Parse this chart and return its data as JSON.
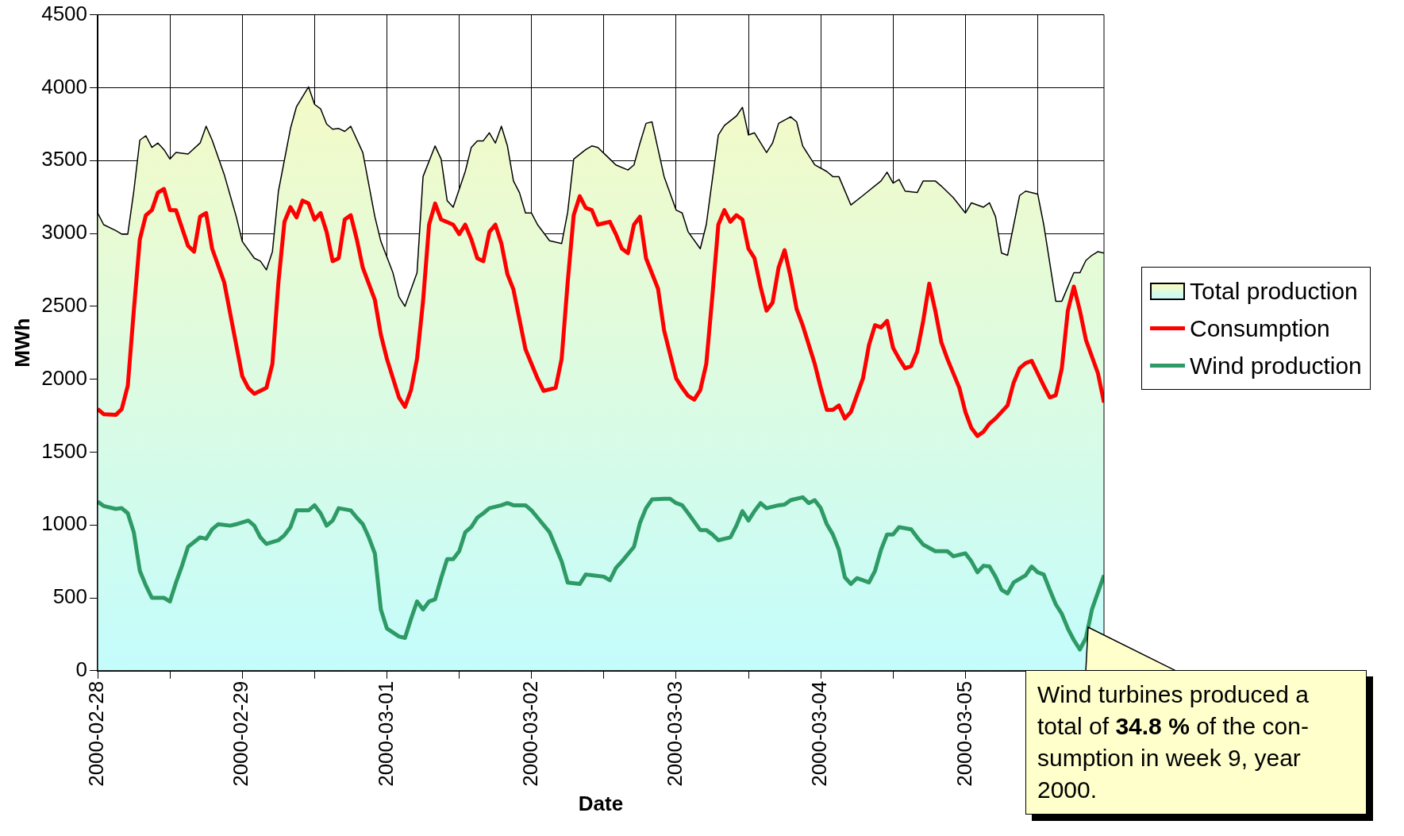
{
  "chart_data": {
    "type": "line",
    "xlabel": "Date",
    "ylabel": "MWh",
    "xlim": [
      "2000-02-28T00:00",
      "2000-03-05T23:00"
    ],
    "ylim": [
      0,
      4500
    ],
    "yticks": [
      0,
      500,
      1000,
      1500,
      2000,
      2500,
      3000,
      3500,
      4000,
      4500
    ],
    "xticks": [
      "2000-02-28",
      {
        "value": "2000-02-28T12:00",
        "label": null
      },
      "2000-02-29",
      {
        "value": "2000-02-29T12:00",
        "label": null
      },
      "2000-03-01",
      {
        "value": "2000-03-01T12:00",
        "label": null
      },
      "2000-03-02",
      {
        "value": "2000-03-02T12:00",
        "label": null
      },
      "2000-03-03",
      {
        "value": "2000-03-03T12:00",
        "label": null
      },
      "2000-03-04",
      {
        "value": "2000-03-04T12:00",
        "label": null
      },
      "2000-03-05",
      {
        "value": "2000-03-05T12:00",
        "label": null
      }
    ],
    "grid": true,
    "legend": "right",
    "marker": "none",
    "line_style": "solid",
    "series": [
      {
        "name": "Total production",
        "type": "area",
        "color": "#000000",
        "x": [
          "2000-02-28T00:00",
          "2000-02-28T01:00",
          "2000-02-28T03:00",
          "2000-02-28T04:00",
          "2000-02-28T05:00",
          "2000-02-28T06:00",
          "2000-02-28T07:00",
          "2000-02-28T08:00",
          "2000-02-28T09:00",
          "2000-02-28T10:00",
          "2000-02-28T11:00",
          "2000-02-28T12:00",
          "2000-02-28T13:00",
          "2000-02-28T15:00",
          "2000-02-28T17:00",
          "2000-02-28T18:00",
          "2000-02-28T19:00",
          "2000-02-28T21:00",
          "2000-02-28T23:00",
          "2000-02-29T00:00",
          "2000-02-29T02:00",
          "2000-02-29T03:00",
          "2000-02-29T04:00",
          "2000-02-29T05:00",
          "2000-02-29T06:00",
          "2000-02-29T08:00",
          "2000-02-29T09:00",
          "2000-02-29T11:00",
          "2000-02-29T12:00",
          "2000-02-29T13:00",
          "2000-02-29T14:00",
          "2000-02-29T15:00",
          "2000-02-29T16:00",
          "2000-02-29T17:00",
          "2000-02-29T18:00",
          "2000-02-29T20:00",
          "2000-02-29T22:00",
          "2000-02-29T23:00",
          "2000-03-01T01:00",
          "2000-03-01T02:00",
          "2000-03-01T03:00",
          "2000-03-01T05:00",
          "2000-03-01T06:00",
          "2000-03-01T08:00",
          "2000-03-01T09:00",
          "2000-03-01T10:00",
          "2000-03-01T11:00",
          "2000-03-01T13:00",
          "2000-03-01T14:00",
          "2000-03-01T15:00",
          "2000-03-01T16:00",
          "2000-03-01T17:00",
          "2000-03-01T18:00",
          "2000-03-01T19:00",
          "2000-03-01T20:00",
          "2000-03-01T21:00",
          "2000-03-01T22:00",
          "2000-03-01T23:00",
          "2000-03-02T00:00",
          "2000-03-02T01:00",
          "2000-03-02T03:00",
          "2000-03-02T05:00",
          "2000-03-02T06:00",
          "2000-03-02T07:00",
          "2000-03-02T09:00",
          "2000-03-02T10:00",
          "2000-03-02T11:00",
          "2000-03-02T13:00",
          "2000-03-02T14:00",
          "2000-03-02T16:00",
          "2000-03-02T17:00",
          "2000-03-02T18:00",
          "2000-03-02T19:00",
          "2000-03-02T20:00",
          "2000-03-02T22:00",
          "2000-03-03T00:00",
          "2000-03-03T01:00",
          "2000-03-03T02:00",
          "2000-03-03T04:00",
          "2000-03-03T05:00",
          "2000-03-03T07:00",
          "2000-03-03T08:00",
          "2000-03-03T10:00",
          "2000-03-03T11:00",
          "2000-03-03T12:00",
          "2000-03-03T13:00",
          "2000-03-03T15:00",
          "2000-03-03T16:00",
          "2000-03-03T17:00",
          "2000-03-03T19:00",
          "2000-03-03T20:00",
          "2000-03-03T21:00",
          "2000-03-03T23:00",
          "2000-03-04T01:00",
          "2000-03-04T02:00",
          "2000-03-04T03:00",
          "2000-03-04T05:00",
          "2000-03-04T07:00",
          "2000-03-04T10:00",
          "2000-03-04T11:00",
          "2000-03-04T12:00",
          "2000-03-04T13:00",
          "2000-03-04T14:00",
          "2000-03-04T16:00",
          "2000-03-04T17:00",
          "2000-03-04T19:00",
          "2000-03-04T20:00",
          "2000-03-04T22:00",
          "2000-03-05T00:00",
          "2000-03-05T01:00",
          "2000-03-05T03:00",
          "2000-03-05T04:00",
          "2000-03-05T05:00",
          "2000-03-05T06:00",
          "2000-03-05T07:00",
          "2000-03-05T09:00",
          "2000-03-05T10:00",
          "2000-03-05T12:00",
          "2000-03-05T13:00",
          "2000-03-05T15:00",
          "2000-03-05T16:00",
          "2000-03-05T18:00",
          "2000-03-05T19:00",
          "2000-03-05T20:00",
          "2000-03-05T21:00",
          "2000-03-05T22:00",
          "2000-03-05T23:00"
        ],
        "values": [
          3140,
          3060,
          3020,
          2995,
          2995,
          3290,
          3640,
          3670,
          3590,
          3620,
          3575,
          3510,
          3555,
          3545,
          3620,
          3735,
          3640,
          3405,
          3115,
          2945,
          2830,
          2810,
          2750,
          2875,
          3290,
          3720,
          3870,
          4005,
          3885,
          3855,
          3750,
          3715,
          3720,
          3700,
          3735,
          3555,
          3115,
          2945,
          2730,
          2565,
          2500,
          2730,
          3390,
          3600,
          3510,
          3225,
          3180,
          3425,
          3590,
          3635,
          3635,
          3690,
          3620,
          3735,
          3600,
          3360,
          3280,
          3140,
          3140,
          3060,
          2950,
          2930,
          3145,
          3510,
          3575,
          3600,
          3590,
          3510,
          3470,
          3435,
          3470,
          3620,
          3755,
          3765,
          3390,
          3160,
          3140,
          3010,
          2895,
          3060,
          3675,
          3740,
          3805,
          3865,
          3675,
          3690,
          3555,
          3620,
          3755,
          3800,
          3765,
          3600,
          3470,
          3425,
          3390,
          3390,
          3195,
          3260,
          3360,
          3420,
          3345,
          3370,
          3290,
          3280,
          3360,
          3360,
          3325,
          3245,
          3140,
          3210,
          3180,
          3210,
          3115,
          2865,
          2850,
          3260,
          3290,
          3270,
          3060,
          2535,
          2535,
          2730,
          2730,
          2815,
          2850,
          2875,
          2865
        ]
      },
      {
        "name": "Consumption",
        "type": "line",
        "color": "#ff0000",
        "x": [
          "2000-02-28T00:00",
          "2000-02-28T01:00",
          "2000-02-28T03:00",
          "2000-02-28T04:00",
          "2000-02-28T05:00",
          "2000-02-28T06:00",
          "2000-02-28T07:00",
          "2000-02-28T08:00",
          "2000-02-28T09:00",
          "2000-02-28T10:00",
          "2000-02-28T11:00",
          "2000-02-28T12:00",
          "2000-02-28T13:00",
          "2000-02-28T15:00",
          "2000-02-28T16:00",
          "2000-02-28T17:00",
          "2000-02-28T18:00",
          "2000-02-28T19:00",
          "2000-02-28T21:00",
          "2000-02-28T23:00",
          "2000-02-29T00:00",
          "2000-02-29T01:00",
          "2000-02-29T02:00",
          "2000-02-29T04:00",
          "2000-02-29T05:00",
          "2000-02-29T06:00",
          "2000-02-29T07:00",
          "2000-02-29T08:00",
          "2000-02-29T09:00",
          "2000-02-29T10:00",
          "2000-02-29T11:00",
          "2000-02-29T12:00",
          "2000-02-29T13:00",
          "2000-02-29T14:00",
          "2000-02-29T15:00",
          "2000-02-29T16:00",
          "2000-02-29T17:00",
          "2000-02-29T18:00",
          "2000-02-29T19:00",
          "2000-02-29T20:00",
          "2000-02-29T22:00",
          "2000-02-29T23:00",
          "2000-03-01T00:00",
          "2000-03-01T02:00",
          "2000-03-01T03:00",
          "2000-03-01T04:00",
          "2000-03-01T05:00",
          "2000-03-01T06:00",
          "2000-03-01T07:00",
          "2000-03-01T08:00",
          "2000-03-01T09:00",
          "2000-03-01T11:00",
          "2000-03-01T12:00",
          "2000-03-01T13:00",
          "2000-03-01T14:00",
          "2000-03-01T15:00",
          "2000-03-01T16:00",
          "2000-03-01T17:00",
          "2000-03-01T18:00",
          "2000-03-01T19:00",
          "2000-03-01T20:00",
          "2000-03-01T21:00",
          "2000-03-01T23:00",
          "2000-03-02T01:00",
          "2000-03-02T02:00",
          "2000-03-02T04:00",
          "2000-03-02T05:00",
          "2000-03-02T06:00",
          "2000-03-02T07:00",
          "2000-03-02T08:00",
          "2000-03-02T09:00",
          "2000-03-02T10:00",
          "2000-03-02T11:00",
          "2000-03-02T13:00",
          "2000-03-02T14:00",
          "2000-03-02T15:00",
          "2000-03-02T16:00",
          "2000-03-02T17:00",
          "2000-03-02T18:00",
          "2000-03-02T19:00",
          "2000-03-02T21:00",
          "2000-03-02T22:00",
          "2000-03-03T00:00",
          "2000-03-03T01:00",
          "2000-03-03T02:00",
          "2000-03-03T03:00",
          "2000-03-03T04:00",
          "2000-03-03T05:00",
          "2000-03-03T06:00",
          "2000-03-03T07:00",
          "2000-03-03T08:00",
          "2000-03-03T09:00",
          "2000-03-03T10:00",
          "2000-03-03T11:00",
          "2000-03-03T12:00",
          "2000-03-03T13:00",
          "2000-03-03T14:00",
          "2000-03-03T15:00",
          "2000-03-03T16:00",
          "2000-03-03T17:00",
          "2000-03-03T18:00",
          "2000-03-03T19:00",
          "2000-03-03T20:00",
          "2000-03-03T21:00",
          "2000-03-03T23:00",
          "2000-03-04T00:00",
          "2000-03-04T01:00",
          "2000-03-04T02:00",
          "2000-03-04T03:00",
          "2000-03-04T04:00",
          "2000-03-04T05:00",
          "2000-03-04T07:00",
          "2000-03-04T08:00",
          "2000-03-04T09:00",
          "2000-03-04T10:00",
          "2000-03-04T11:00",
          "2000-03-04T12:00",
          "2000-03-04T13:00",
          "2000-03-04T14:00",
          "2000-03-04T15:00",
          "2000-03-04T16:00",
          "2000-03-04T17:00",
          "2000-03-04T18:00",
          "2000-03-04T19:00",
          "2000-03-04T20:00",
          "2000-03-04T21:00",
          "2000-03-04T23:00",
          "2000-03-05T00:00",
          "2000-03-05T01:00",
          "2000-03-05T02:00",
          "2000-03-05T03:00",
          "2000-03-05T04:00",
          "2000-03-05T05:00",
          "2000-03-05T07:00",
          "2000-03-05T08:00",
          "2000-03-05T09:00",
          "2000-03-05T10:00",
          "2000-03-05T11:00",
          "2000-03-05T12:00",
          "2000-03-05T13:00",
          "2000-03-05T14:00",
          "2000-03-05T15:00",
          "2000-03-05T16:00",
          "2000-03-05T17:00",
          "2000-03-05T18:00",
          "2000-03-05T19:00",
          "2000-03-05T20:00",
          "2000-03-05T22:00",
          "2000-03-05T23:00"
        ],
        "values": [
          1795,
          1760,
          1755,
          1795,
          1955,
          2470,
          2960,
          3125,
          3160,
          3280,
          3305,
          3160,
          3160,
          2915,
          2875,
          3115,
          3140,
          2895,
          2665,
          2235,
          2020,
          1940,
          1900,
          1940,
          2105,
          2665,
          3080,
          3180,
          3110,
          3225,
          3205,
          3095,
          3140,
          3010,
          2810,
          2830,
          3095,
          3125,
          2960,
          2765,
          2545,
          2305,
          2140,
          1875,
          1810,
          1925,
          2140,
          2535,
          3060,
          3205,
          3095,
          3060,
          2995,
          3060,
          2960,
          2830,
          2810,
          3010,
          3060,
          2930,
          2720,
          2615,
          2205,
          2005,
          1920,
          1940,
          2140,
          2665,
          3125,
          3255,
          3175,
          3160,
          3060,
          3080,
          2995,
          2895,
          2865,
          3060,
          3115,
          2830,
          2620,
          2335,
          2005,
          1940,
          1885,
          1860,
          1925,
          2105,
          2565,
          3060,
          3160,
          3080,
          3125,
          3095,
          2895,
          2830,
          2635,
          2470,
          2525,
          2765,
          2885,
          2700,
          2480,
          2370,
          2105,
          1940,
          1790,
          1790,
          1820,
          1730,
          1775,
          2005,
          2235,
          2370,
          2355,
          2400,
          2215,
          2140,
          2075,
          2090,
          2190,
          2400,
          2655,
          2470,
          2255,
          2140,
          1940,
          1775,
          1665,
          1610,
          1640,
          1695,
          1730,
          1820,
          1975,
          2075,
          2110,
          2125,
          2040,
          1955,
          1875,
          1890,
          2075,
          2470,
          2635,
          2470,
          2270,
          2040,
          1840
        ]
      },
      {
        "name": "Wind production",
        "type": "line",
        "color": "#2e9b66",
        "x": [
          "2000-02-28T00:00",
          "2000-02-28T01:00",
          "2000-02-28T03:00",
          "2000-02-28T04:00",
          "2000-02-28T05:00",
          "2000-02-28T06:00",
          "2000-02-28T07:00",
          "2000-02-28T08:00",
          "2000-02-28T09:00",
          "2000-02-28T11:00",
          "2000-02-28T12:00",
          "2000-02-28T13:00",
          "2000-02-28T14:00",
          "2000-02-28T15:00",
          "2000-02-28T17:00",
          "2000-02-28T18:00",
          "2000-02-28T19:00",
          "2000-02-28T20:00",
          "2000-02-28T22:00",
          "2000-02-28T23:00",
          "2000-02-29T01:00",
          "2000-02-29T02:00",
          "2000-02-29T03:00",
          "2000-02-29T04:00",
          "2000-02-29T06:00",
          "2000-02-29T07:00",
          "2000-02-29T08:00",
          "2000-02-29T09:00",
          "2000-02-29T11:00",
          "2000-02-29T12:00",
          "2000-02-29T13:00",
          "2000-02-29T14:00",
          "2000-02-29T15:00",
          "2000-02-29T16:00",
          "2000-02-29T18:00",
          "2000-02-29T19:00",
          "2000-02-29T20:00",
          "2000-02-29T21:00",
          "2000-02-29T22:00",
          "2000-02-29T23:00",
          "2000-03-01T00:00",
          "2000-03-01T02:00",
          "2000-03-01T03:00",
          "2000-03-01T04:00",
          "2000-03-01T05:00",
          "2000-03-01T06:00",
          "2000-03-01T07:00",
          "2000-03-01T08:00",
          "2000-03-01T09:00",
          "2000-03-01T10:00",
          "2000-03-01T11:00",
          "2000-03-01T12:00",
          "2000-03-01T13:00",
          "2000-03-01T14:00",
          "2000-03-01T15:00",
          "2000-03-01T16:00",
          "2000-03-01T17:00",
          "2000-03-01T19:00",
          "2000-03-01T20:00",
          "2000-03-01T21:00",
          "2000-03-01T23:00",
          "2000-03-02T00:00",
          "2000-03-02T01:00",
          "2000-03-02T03:00",
          "2000-03-02T04:00",
          "2000-03-02T05:00",
          "2000-03-02T06:00",
          "2000-03-02T08:00",
          "2000-03-02T09:00",
          "2000-03-02T10:00",
          "2000-03-02T12:00",
          "2000-03-02T13:00",
          "2000-03-02T14:00",
          "2000-03-02T15:00",
          "2000-03-02T17:00",
          "2000-03-02T18:00",
          "2000-03-02T19:00",
          "2000-03-02T20:00",
          "2000-03-02T22:00",
          "2000-03-02T23:00",
          "2000-03-03T00:00",
          "2000-03-03T01:00",
          "2000-03-03T02:00",
          "2000-03-03T04:00",
          "2000-03-03T05:00",
          "2000-03-03T06:00",
          "2000-03-03T07:00",
          "2000-03-03T09:00",
          "2000-03-03T10:00",
          "2000-03-03T11:00",
          "2000-03-03T12:00",
          "2000-03-03T13:00",
          "2000-03-03T14:00",
          "2000-03-03T15:00",
          "2000-03-03T17:00",
          "2000-03-03T18:00",
          "2000-03-03T19:00",
          "2000-03-03T21:00",
          "2000-03-03T22:00",
          "2000-03-03T23:00",
          "2000-03-04T00:00",
          "2000-03-04T01:00",
          "2000-03-04T02:00",
          "2000-03-04T03:00",
          "2000-03-04T04:00",
          "2000-03-04T05:00",
          "2000-03-04T06:00",
          "2000-03-04T08:00",
          "2000-03-04T09:00",
          "2000-03-04T10:00",
          "2000-03-04T11:00",
          "2000-03-04T12:00",
          "2000-03-04T13:00",
          "2000-03-04T15:00",
          "2000-03-04T16:00",
          "2000-03-04T17:00",
          "2000-03-04T19:00",
          "2000-03-04T20:00",
          "2000-03-04T21:00",
          "2000-03-04T22:00",
          "2000-03-05T00:00",
          "2000-03-05T01:00",
          "2000-03-05T02:00",
          "2000-03-05T03:00",
          "2000-03-05T04:00",
          "2000-03-05T05:00",
          "2000-03-05T06:00",
          "2000-03-05T07:00",
          "2000-03-05T08:00",
          "2000-03-05T10:00",
          "2000-03-05T11:00",
          "2000-03-05T12:00",
          "2000-03-05T13:00",
          "2000-03-05T14:00",
          "2000-03-05T15:00",
          "2000-03-05T16:00",
          "2000-03-05T17:00",
          "2000-03-05T18:00",
          "2000-03-05T19:00",
          "2000-03-05T20:00",
          "2000-03-05T21:00",
          "2000-03-05T23:00"
        ],
        "values": [
          1160,
          1130,
          1110,
          1115,
          1080,
          950,
          685,
          585,
          500,
          500,
          475,
          605,
          720,
          850,
          915,
          905,
          970,
          1005,
          995,
          1005,
          1030,
          995,
          915,
          870,
          895,
          930,
          985,
          1100,
          1100,
          1135,
          1080,
          995,
          1030,
          1115,
          1100,
          1050,
          1005,
          915,
          805,
          420,
          290,
          235,
          225,
          355,
          475,
          420,
          475,
          490,
          635,
          765,
          765,
          820,
          950,
          985,
          1050,
          1080,
          1115,
          1135,
          1150,
          1135,
          1135,
          1100,
          1050,
          950,
          850,
          750,
          605,
          595,
          660,
          655,
          645,
          620,
          705,
          750,
          850,
          1015,
          1115,
          1175,
          1180,
          1180,
          1150,
          1135,
          1080,
          965,
          965,
          935,
          895,
          915,
          995,
          1095,
          1030,
          1095,
          1150,
          1115,
          1135,
          1140,
          1170,
          1190,
          1150,
          1170,
          1115,
          1005,
          935,
          830,
          640,
          595,
          635,
          605,
          685,
          830,
          935,
          935,
          985,
          970,
          915,
          865,
          820,
          820,
          820,
          785,
          805,
          750,
          675,
          720,
          715,
          645,
          555,
          530,
          605,
          655,
          715,
          675,
          660,
          555,
          455,
          390,
          290,
          210,
          145,
          225,
          420,
          655
        ]
      }
    ],
    "annotations": [
      "Wind turbines produced a total of 34.8 % of the con-sumption in week 9, year 2000."
    ]
  }
}
